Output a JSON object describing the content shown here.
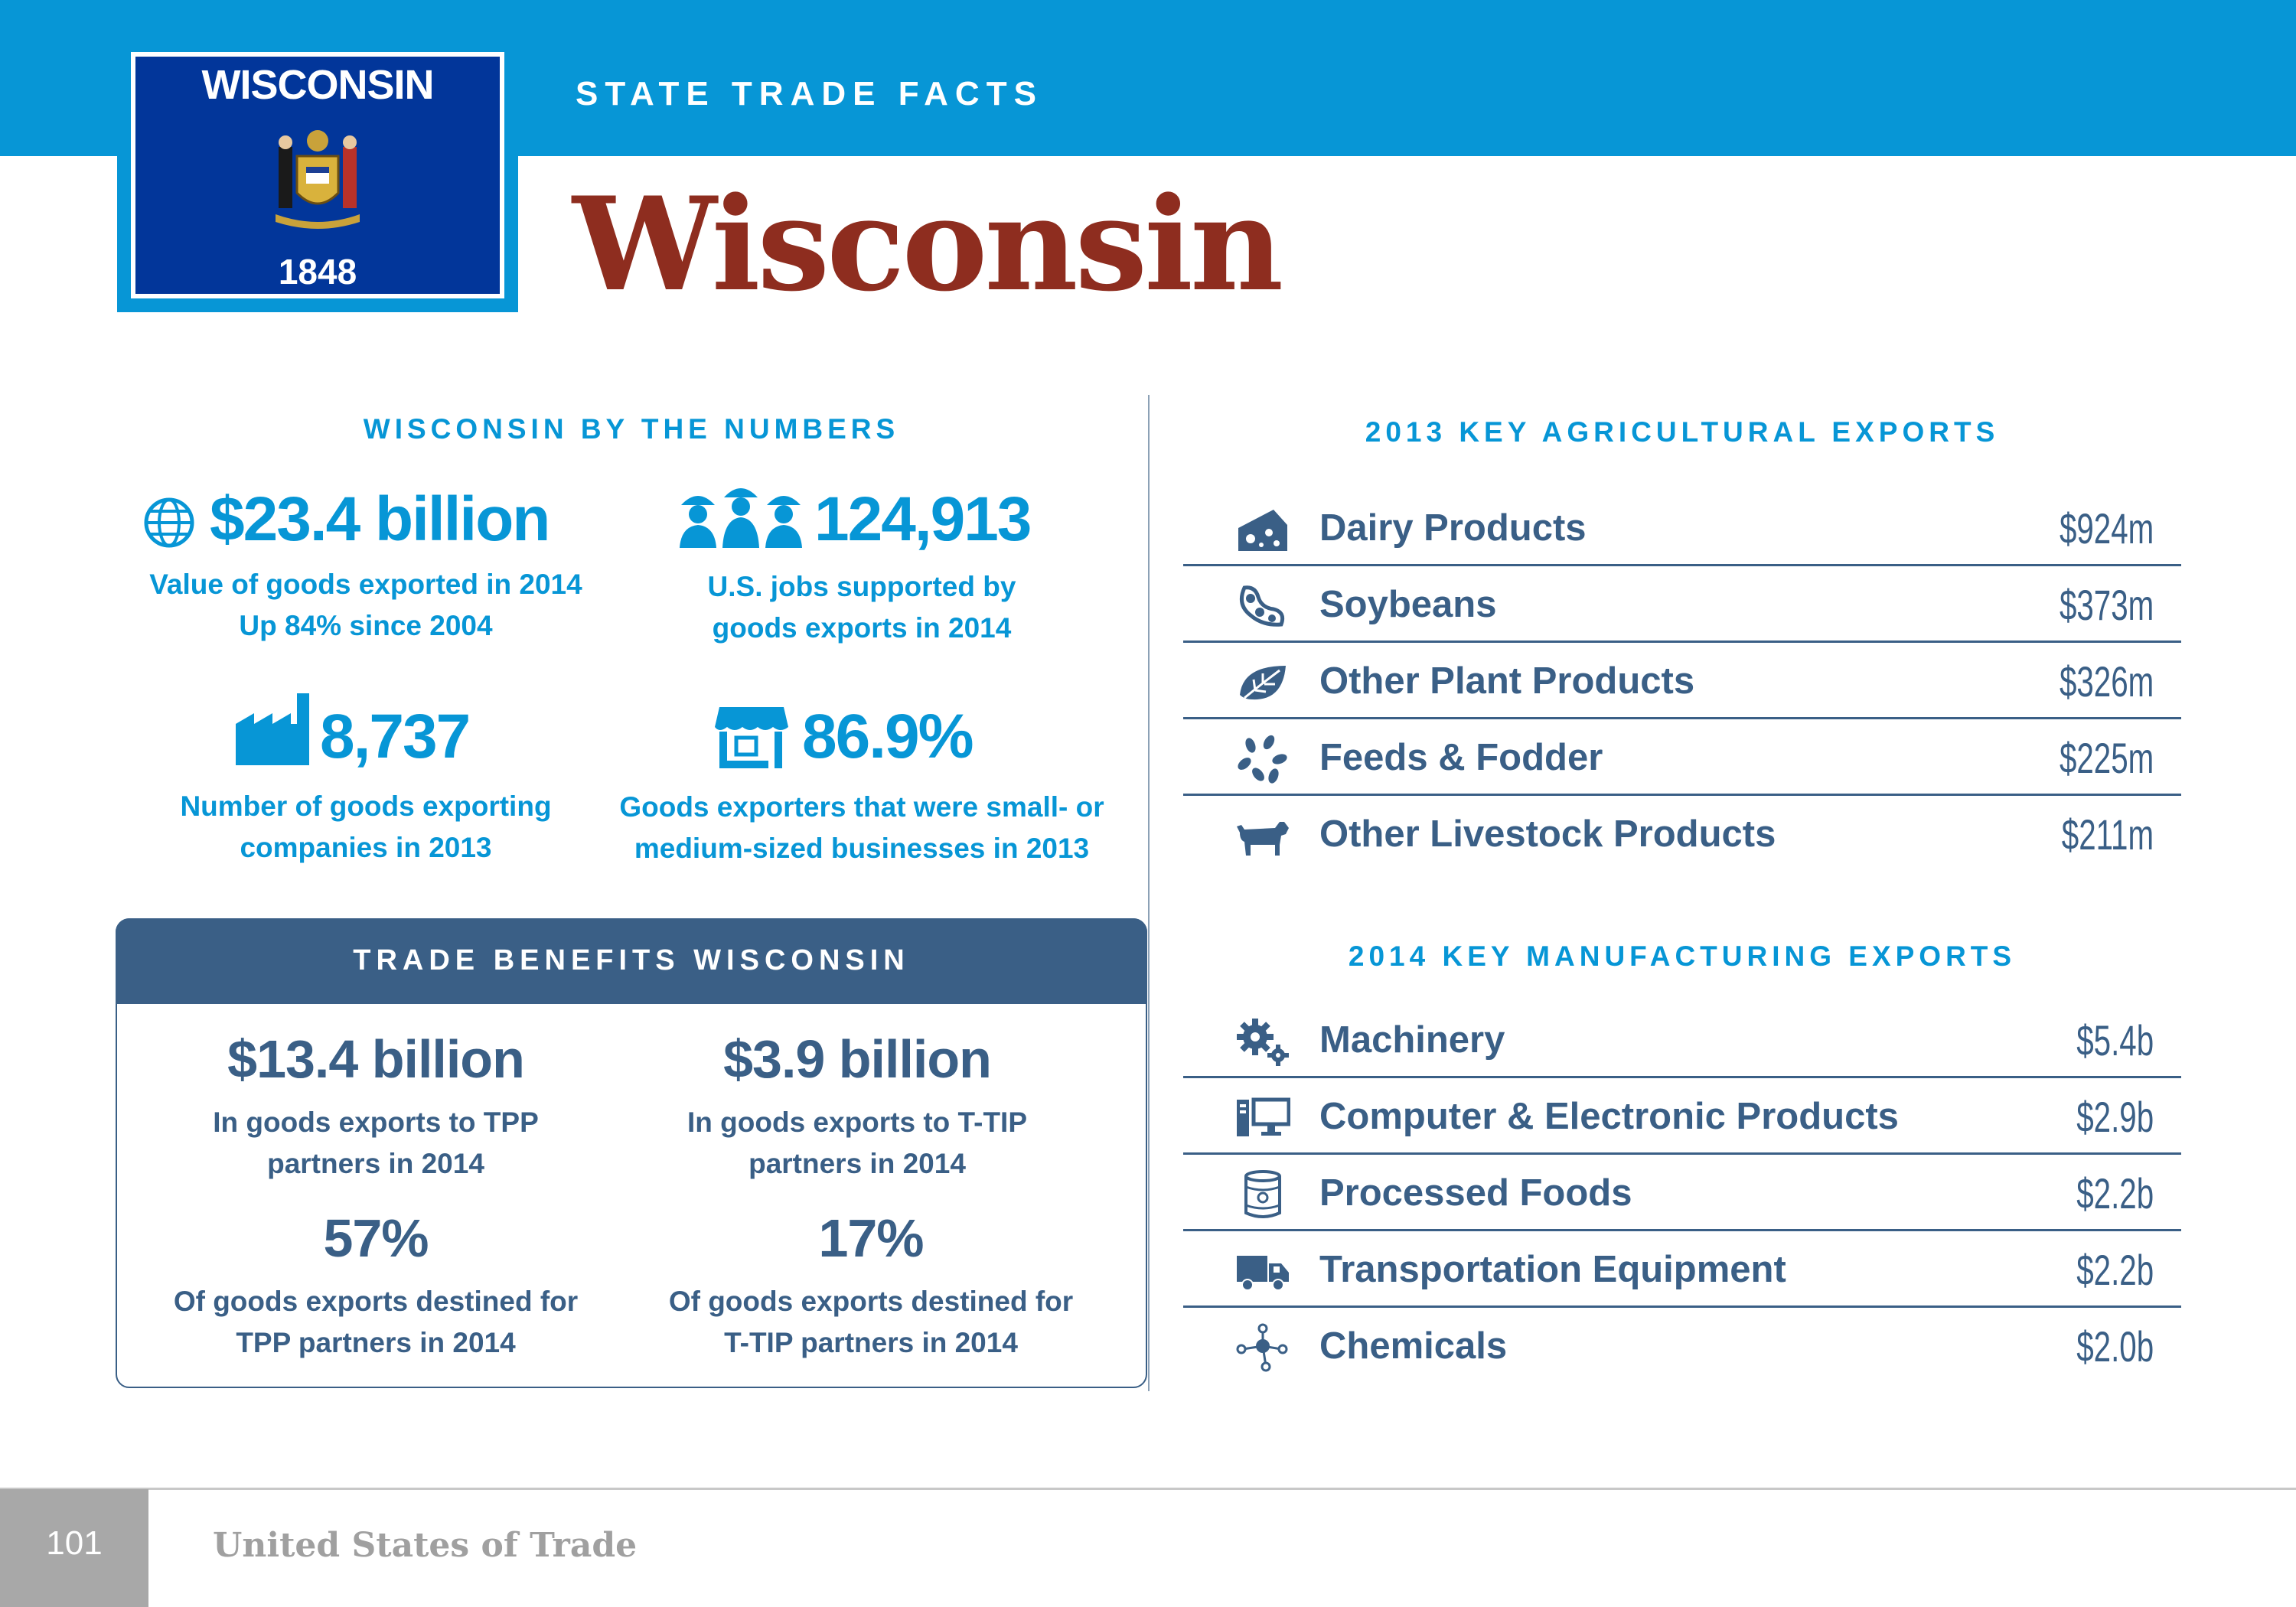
{
  "header": {
    "kicker": "STATE TRADE FACTS",
    "title": "Wisconsin",
    "flag": {
      "state_name": "WISCONSIN",
      "year": "1848",
      "seal_icon": "state-seal-icon"
    }
  },
  "numbers": {
    "heading": "WISCONSIN BY THE NUMBERS",
    "stats": [
      {
        "icon": "globe-icon",
        "value": "$23.4 billion",
        "desc_line1": "Value of goods exported in 2014",
        "desc_line2": "Up 84% since 2004"
      },
      {
        "icon": "workers-icon",
        "value": "124,913",
        "desc_line1": "U.S. jobs supported by",
        "desc_line2": "goods exports in 2014"
      },
      {
        "icon": "factory-icon",
        "value": "8,737",
        "desc_line1": "Number of goods exporting",
        "desc_line2": "companies in 2013"
      },
      {
        "icon": "storefront-icon",
        "value": "86.9%",
        "desc_line1": "Goods exporters that were small- or",
        "desc_line2": "medium-sized businesses in 2013"
      }
    ]
  },
  "benefits": {
    "heading": "TRADE BENEFITS WISCONSIN",
    "items": [
      {
        "value": "$13.4 billion",
        "desc_line1": "In goods exports to TPP",
        "desc_line2": "partners in 2014"
      },
      {
        "value": "$3.9 billion",
        "desc_line1": "In goods exports to T-TIP",
        "desc_line2": "partners in 2014"
      },
      {
        "value": "57%",
        "desc_line1": "Of goods exports destined for",
        "desc_line2": "TPP partners in 2014"
      },
      {
        "value": "17%",
        "desc_line1": "Of goods exports destined for",
        "desc_line2": "T-TIP partners in 2014"
      }
    ]
  },
  "agricultural": {
    "heading": "2013 KEY AGRICULTURAL EXPORTS",
    "rows": [
      {
        "icon": "cheese-icon",
        "label": "Dairy Products",
        "value": "$924m"
      },
      {
        "icon": "soybean-icon",
        "label": "Soybeans",
        "value": "$373m"
      },
      {
        "icon": "leaf-icon",
        "label": "Other Plant Products",
        "value": "$326m"
      },
      {
        "icon": "grain-icon",
        "label": "Feeds & Fodder",
        "value": "$225m"
      },
      {
        "icon": "cow-icon",
        "label": "Other Livestock Products",
        "value": "$211m"
      }
    ]
  },
  "manufacturing": {
    "heading": "2014 KEY MANUFACTURING EXPORTS",
    "rows": [
      {
        "icon": "gears-icon",
        "label": "Machinery",
        "value": "$5.4b"
      },
      {
        "icon": "computer-icon",
        "label": "Computer & Electronic Products",
        "value": "$2.9b"
      },
      {
        "icon": "can-icon",
        "label": "Processed Foods",
        "value": "$2.2b"
      },
      {
        "icon": "truck-icon",
        "label": "Transportation Equipment",
        "value": "$2.2b"
      },
      {
        "icon": "molecule-icon",
        "label": "Chemicals",
        "value": "$2.0b"
      }
    ]
  },
  "footer": {
    "page_number": "101",
    "publication": "United States of Trade"
  },
  "colors": {
    "brand_blue": "#0796d6",
    "slate": "#3a5f86",
    "title_red": "#8e2d1f",
    "flag_blue": "#02369a"
  }
}
